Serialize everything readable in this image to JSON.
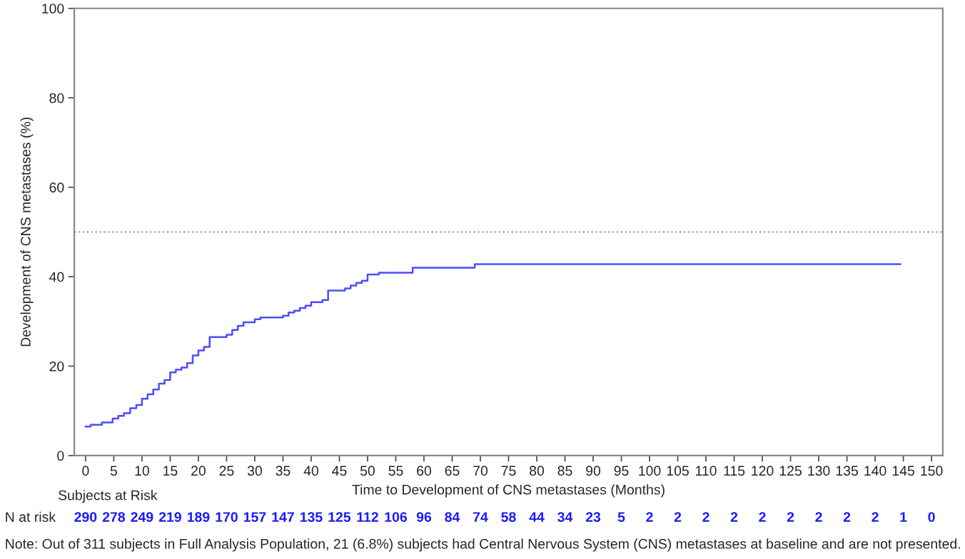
{
  "chart_data": {
    "type": "step",
    "xlabel": "Time to Development of CNS metastases (Months)",
    "ylabel": "Development of CNS metastases (%)",
    "x": [
      0,
      0.9,
      2.9,
      4.8,
      5.8,
      6.8,
      7.9,
      9,
      10,
      11,
      12,
      13,
      14,
      15,
      16,
      17,
      18,
      19,
      20,
      21,
      22,
      25,
      26,
      27,
      28,
      30,
      31,
      35,
      36,
      37,
      38,
      39,
      40,
      42,
      43,
      46,
      47,
      48,
      49,
      50,
      52,
      58,
      69,
      144.5
    ],
    "series": [
      {
        "color": "#4c4cff",
        "values": [
          6.5,
          6.9,
          7.4,
          8.3,
          8.9,
          9.5,
          10.6,
          11.3,
          12.7,
          13.7,
          14.8,
          16.1,
          16.9,
          18.6,
          19.2,
          19.7,
          20.7,
          22.4,
          23.5,
          24.3,
          26.5,
          27,
          28.1,
          29,
          29.8,
          30.5,
          30.9,
          31.3,
          32,
          32.4,
          33,
          33.5,
          34.3,
          34.8,
          36.9,
          37.4,
          38,
          38.6,
          39.1,
          40.5,
          40.9,
          42,
          42.8,
          42.8
        ]
      }
    ],
    "xlim": [
      -2,
      152
    ],
    "ylim": [
      0,
      100
    ],
    "xticks": [
      0,
      5,
      10,
      15,
      20,
      25,
      30,
      35,
      40,
      45,
      50,
      55,
      60,
      65,
      70,
      75,
      80,
      85,
      90,
      95,
      100,
      105,
      110,
      115,
      120,
      125,
      130,
      135,
      140,
      145,
      150
    ],
    "yticks": [
      0,
      20,
      40,
      60,
      80,
      100
    ],
    "ref_lines": [
      {
        "axis": "y",
        "value": 50,
        "color": "#a0a0a0",
        "line_style": "dotted"
      }
    ],
    "grid": false,
    "legend": false,
    "marker": "none",
    "line_style": "solid",
    "annotations": [
      "Subjects at Risk",
      "N at risk",
      "290",
      "278",
      "249",
      "219",
      "189",
      "170",
      "157",
      "147",
      "135",
      "125",
      "112",
      "106",
      "96",
      "84",
      "74",
      "58",
      "44",
      "34",
      "23",
      "5",
      "2",
      "2",
      "2",
      "2",
      "2",
      "2",
      "2",
      "2",
      "2",
      "1",
      "0",
      "Note: Out of 311 subjects in Full Analysis Population, 21 (6.8%) subjects had Central Nervous System (CNS) metastases at baseline and are not presented."
    ]
  }
}
